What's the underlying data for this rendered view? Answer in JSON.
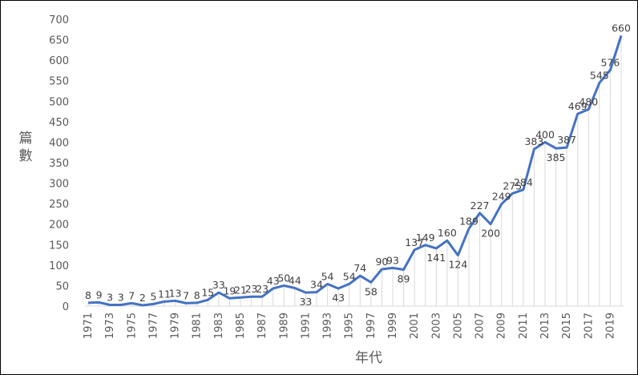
{
  "chart_data": {
    "type": "line",
    "x_label": "年代",
    "y_label": "篇數",
    "categories": [
      "1971",
      null,
      "1973",
      null,
      "1975",
      null,
      "1977",
      null,
      "1979",
      null,
      "1981",
      null,
      "1983",
      null,
      "1985",
      null,
      "1987",
      null,
      "1989",
      null,
      "1991",
      null,
      "1993",
      null,
      "1995",
      null,
      "1997",
      null,
      "1999",
      null,
      "2001",
      null,
      "2003",
      null,
      "2005",
      null,
      "2007",
      null,
      "2009",
      null,
      "2011",
      null,
      "2013",
      null,
      "2015",
      null,
      "2017",
      null,
      "2019",
      null
    ],
    "values": [
      8,
      9,
      3,
      3,
      7,
      2,
      5,
      11,
      13,
      7,
      8,
      15,
      33,
      19,
      21,
      23,
      23,
      43,
      50,
      44,
      33,
      34,
      54,
      43,
      54,
      74,
      58,
      90,
      93,
      89,
      137,
      149,
      141,
      160,
      124,
      189,
      227,
      200,
      249,
      275,
      284,
      383,
      400,
      385,
      387,
      469,
      480,
      545,
      576,
      660
    ],
    "color": "#4472c4",
    "ylim": [
      0,
      700
    ],
    "yticks": [
      0,
      50,
      100,
      150,
      200,
      250,
      300,
      350,
      400,
      450,
      500,
      550,
      600,
      650,
      700
    ],
    "data_labels": true,
    "drop_lines": true
  }
}
